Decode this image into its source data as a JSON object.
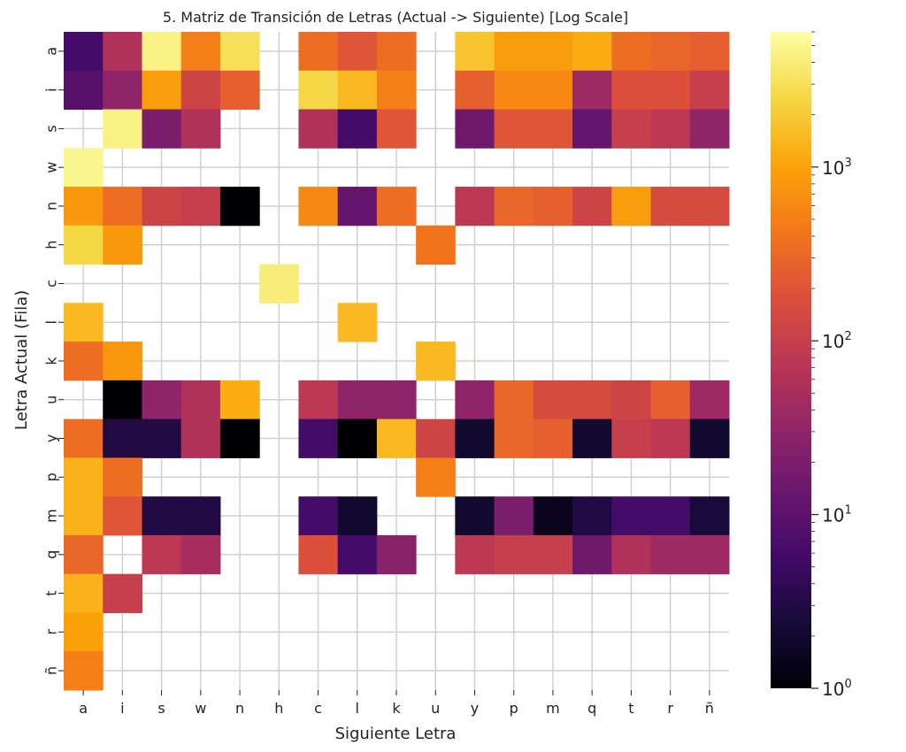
{
  "chart_data": {
    "type": "heatmap",
    "title": "5. Matriz de Transición de Letras (Actual -> Siguiente) [Log Scale]",
    "xlabel": "Siguiente Letra",
    "ylabel": "Letra Actual (Fila)",
    "x_categories": [
      "a",
      "i",
      "s",
      "w",
      "n",
      "h",
      "c",
      "l",
      "k",
      "u",
      "y",
      "p",
      "m",
      "q",
      "t",
      "r",
      "ñ"
    ],
    "y_categories": [
      "a",
      "i",
      "s",
      "w",
      "n",
      "h",
      "c",
      "l",
      "k",
      "u",
      "y",
      "p",
      "m",
      "q",
      "t",
      "r",
      "ñ"
    ],
    "color_scale": "log",
    "colormap": "inferno",
    "vmin": 1,
    "vmax": 6000,
    "colorbar_ticks": [
      {
        "value": 1,
        "label": "10",
        "exp": "0"
      },
      {
        "value": 10,
        "label": "10",
        "exp": "1"
      },
      {
        "value": 100,
        "label": "10",
        "exp": "2"
      },
      {
        "value": 1000,
        "label": "10",
        "exp": "3"
      }
    ],
    "grid": true,
    "values": [
      [
        6,
        60,
        4500,
        500,
        3000,
        null,
        350,
        200,
        350,
        null,
        1800,
        900,
        900,
        1200,
        350,
        300,
        250
      ],
      [
        9,
        30,
        900,
        120,
        250,
        null,
        2500,
        1500,
        500,
        null,
        250,
        600,
        600,
        40,
        180,
        180,
        100
      ],
      [
        null,
        4500,
        20,
        60,
        null,
        null,
        60,
        6,
        200,
        null,
        15,
        200,
        200,
        12,
        100,
        80,
        30
      ],
      [
        5000,
        null,
        null,
        null,
        null,
        null,
        null,
        null,
        null,
        null,
        null,
        null,
        null,
        null,
        null,
        null,
        null
      ],
      [
        800,
        350,
        120,
        100,
        1,
        null,
        600,
        12,
        350,
        null,
        80,
        300,
        250,
        120,
        900,
        150,
        150
      ],
      [
        2500,
        800,
        null,
        null,
        null,
        null,
        null,
        null,
        null,
        400,
        null,
        null,
        null,
        null,
        null,
        null,
        null
      ],
      [
        null,
        null,
        null,
        null,
        null,
        4000,
        null,
        null,
        null,
        null,
        null,
        null,
        null,
        null,
        null,
        null,
        null
      ],
      [
        1500,
        null,
        null,
        null,
        null,
        null,
        null,
        1500,
        null,
        null,
        null,
        null,
        null,
        null,
        null,
        null,
        null
      ],
      [
        350,
        800,
        null,
        null,
        null,
        null,
        null,
        null,
        null,
        1500,
        null,
        null,
        null,
        null,
        null,
        null,
        null
      ],
      [
        null,
        1,
        30,
        60,
        1200,
        null,
        80,
        30,
        30,
        null,
        30,
        300,
        150,
        150,
        120,
        250,
        40
      ],
      [
        350,
        3,
        3,
        60,
        1,
        null,
        6,
        1,
        1500,
        120,
        2,
        300,
        250,
        2,
        100,
        80,
        2
      ],
      [
        1300,
        350,
        null,
        null,
        null,
        null,
        null,
        null,
        null,
        500,
        null,
        null,
        null,
        null,
        null,
        null,
        null
      ],
      [
        1300,
        200,
        3,
        3,
        null,
        null,
        6,
        2,
        null,
        null,
        2,
        20,
        1.5,
        3,
        6,
        6,
        2.5
      ],
      [
        300,
        null,
        80,
        50,
        null,
        null,
        180,
        6,
        25,
        null,
        80,
        100,
        100,
        15,
        60,
        40,
        40
      ],
      [
        1300,
        100,
        null,
        null,
        null,
        null,
        null,
        null,
        null,
        null,
        null,
        null,
        null,
        null,
        null,
        null,
        null
      ],
      [
        1000,
        null,
        null,
        null,
        null,
        null,
        null,
        null,
        null,
        null,
        null,
        null,
        null,
        null,
        null,
        null,
        null
      ],
      [
        500,
        null,
        null,
        null,
        null,
        null,
        null,
        null,
        null,
        null,
        null,
        null,
        null,
        null,
        null,
        null,
        null
      ]
    ]
  }
}
